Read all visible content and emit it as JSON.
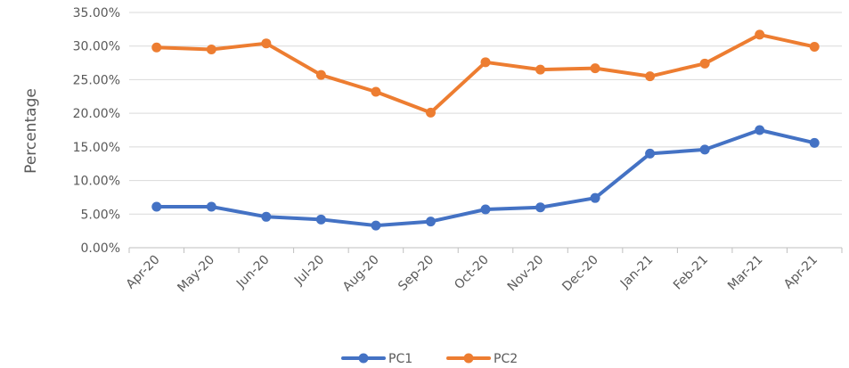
{
  "chart_data": {
    "type": "line",
    "title": "",
    "xlabel": "",
    "ylabel": "Percentage",
    "categories": [
      "Apr-20",
      "May-20",
      "Jun-20",
      "Jul-20",
      "Aug-20",
      "Sep-20",
      "Oct-20",
      "Nov-20",
      "Dec-20",
      "Jan-21",
      "Feb-21",
      "Mar-21",
      "Apr-21"
    ],
    "y_ticks": [
      "0.00%",
      "5.00%",
      "10.00%",
      "15.00%",
      "20.00%",
      "25.00%",
      "30.00%",
      "35.00%"
    ],
    "ylim": [
      0,
      35
    ],
    "grid": true,
    "legend_position": "bottom",
    "series": [
      {
        "name": "PC1",
        "color": "#4472C4",
        "values": [
          6.1,
          6.1,
          4.6,
          4.2,
          3.3,
          3.9,
          5.7,
          6.0,
          7.4,
          14.0,
          14.6,
          17.5,
          15.6
        ]
      },
      {
        "name": "PC2",
        "color": "#ED7D31",
        "values": [
          29.8,
          29.5,
          30.4,
          25.7,
          23.2,
          20.1,
          27.6,
          26.5,
          26.7,
          25.5,
          27.4,
          31.7,
          29.9
        ]
      }
    ]
  }
}
